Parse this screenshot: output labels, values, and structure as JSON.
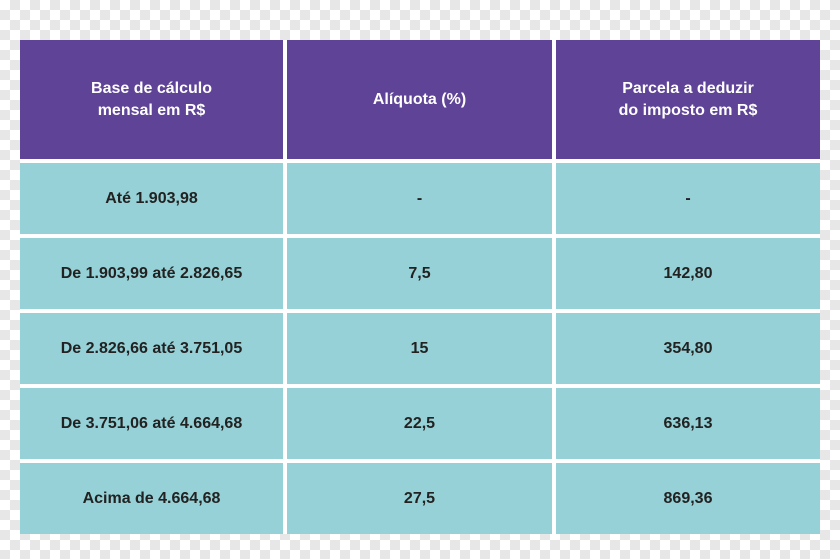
{
  "table": {
    "headers": [
      "Base de cálculo\nmensal em R$",
      "Alíquota (%)",
      "Parcela a deduzir\ndo imposto em R$"
    ],
    "rows": [
      [
        "Até 1.903,98",
        "-",
        "-"
      ],
      [
        "De 1.903,99 até 2.826,65",
        "7,5",
        "142,80"
      ],
      [
        "De 2.826,66 até 3.751,05",
        "15",
        "354,80"
      ],
      [
        "De 3.751,06 até 4.664,68",
        "22,5",
        "636,13"
      ],
      [
        "Acima de 4.664,68",
        "27,5",
        "869,36"
      ]
    ]
  },
  "colors": {
    "header_background": "#5e4396",
    "row_background": "#95d1d6",
    "separator": "#ffffff"
  }
}
